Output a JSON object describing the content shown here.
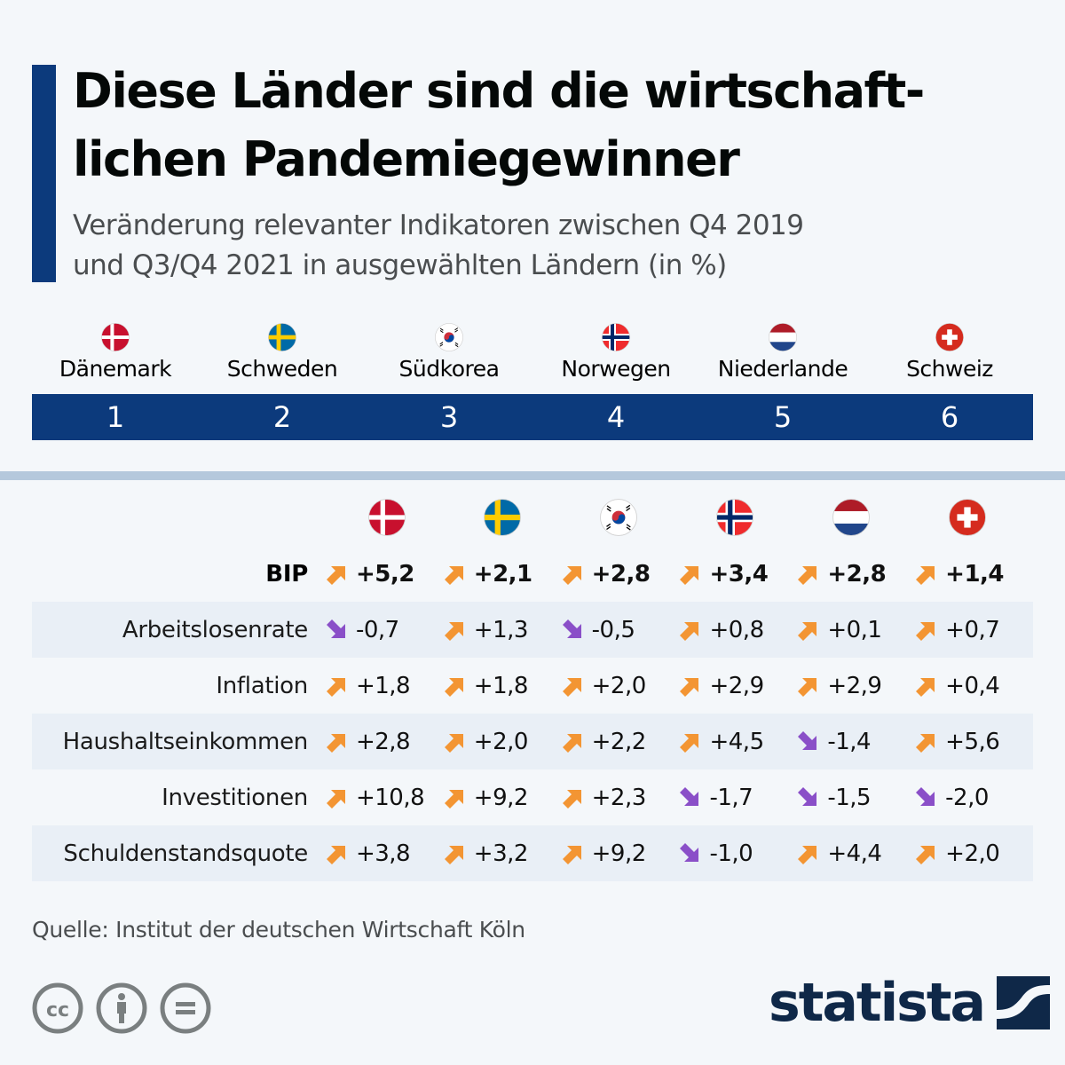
{
  "header": {
    "title": "Diese Länder sind die wirtschaftlichen Pandemiegewinner",
    "title_line1": "Diese Länder sind die wirtschaft-",
    "title_line2": "lichen Pandemiegewinner",
    "subtitle_line1": "Veränderung relevanter Indikatoren zwischen Q4 2019",
    "subtitle_line2": "und Q3/Q4 2021 in ausgewählten Ländern (in %)"
  },
  "colors": {
    "accent": "#0c3a7c",
    "up_arrow": "#f39533",
    "down_arrow": "#8a4fc8",
    "row_shade": "#e9eff6",
    "logo": "#0f2848"
  },
  "ranking": [
    {
      "rank": "1",
      "country": "Dänemark",
      "flag": "denmark-flag"
    },
    {
      "rank": "2",
      "country": "Schweden",
      "flag": "sweden-flag"
    },
    {
      "rank": "3",
      "country": "Südkorea",
      "flag": "south-korea-flag"
    },
    {
      "rank": "4",
      "country": "Norwegen",
      "flag": "norway-flag"
    },
    {
      "rank": "5",
      "country": "Niederlande",
      "flag": "netherlands-flag"
    },
    {
      "rank": "6",
      "country": "Schweiz",
      "flag": "switzerland-flag"
    }
  ],
  "chart_data": {
    "type": "table",
    "title": "Diese Länder sind die wirtschaftlichen Pandemiegewinner",
    "subtitle": "Veränderung relevanter Indikatoren zwischen Q4 2019 und Q3/Q4 2021 in ausgewählten Ländern (in %)",
    "columns": [
      "Dänemark",
      "Schweden",
      "Südkorea",
      "Norwegen",
      "Niederlande",
      "Schweiz"
    ],
    "rows": [
      {
        "label": "BIP",
        "bold": true,
        "values": [
          "+5,2",
          "+2,1",
          "+2,8",
          "+3,4",
          "+2,8",
          "+1,4"
        ],
        "numeric": [
          5.2,
          2.1,
          2.8,
          3.4,
          2.8,
          1.4
        ]
      },
      {
        "label": "Arbeitslosenrate",
        "bold": false,
        "values": [
          "-0,7",
          "+1,3",
          "-0,5",
          "+0,8",
          "+0,1",
          "+0,7"
        ],
        "numeric": [
          -0.7,
          1.3,
          -0.5,
          0.8,
          0.1,
          0.7
        ]
      },
      {
        "label": "Inflation",
        "bold": false,
        "values": [
          "+1,8",
          "+1,8",
          "+2,0",
          "+2,9",
          "+2,9",
          "+0,4"
        ],
        "numeric": [
          1.8,
          1.8,
          2.0,
          2.9,
          2.9,
          0.4
        ]
      },
      {
        "label": "Haushaltseinkommen",
        "bold": false,
        "values": [
          "+2,8",
          "+2,0",
          "+2,2",
          "+4,5",
          "-1,4",
          "+5,6"
        ],
        "numeric": [
          2.8,
          2.0,
          2.2,
          4.5,
          -1.4,
          5.6
        ]
      },
      {
        "label": "Investitionen",
        "bold": false,
        "values": [
          "+10,8",
          "+9,2",
          "+2,3",
          "-1,7",
          "-1,5",
          "-2,0"
        ],
        "numeric": [
          10.8,
          9.2,
          2.3,
          -1.7,
          -1.5,
          -2.0
        ]
      },
      {
        "label": "Schuldenstandsquote",
        "bold": false,
        "values": [
          "+3,8",
          "+3,2",
          "+9,2",
          "-1,0",
          "+4,4",
          "+2,0"
        ],
        "numeric": [
          3.8,
          3.2,
          9.2,
          -1.0,
          4.4,
          2.0
        ]
      }
    ]
  },
  "footer": {
    "source": "Quelle: Institut der deutschen Wirtschaft Köln",
    "license_icons": [
      "creative-commons-icon",
      "attribution-icon",
      "no-derivatives-icon"
    ],
    "logo_text": "statista"
  }
}
